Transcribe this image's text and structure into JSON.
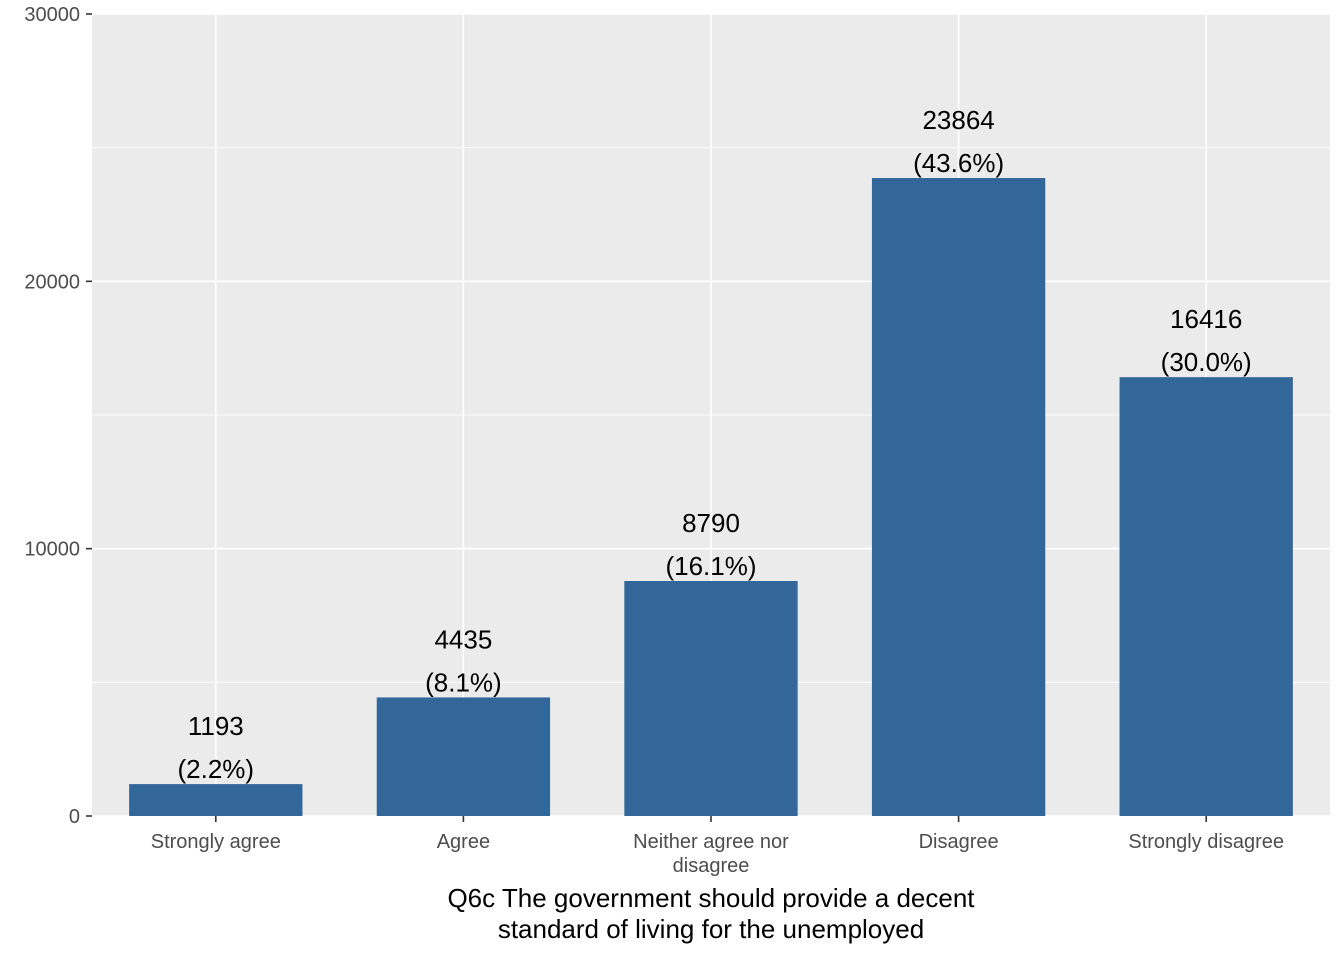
{
  "chart_data": {
    "type": "bar",
    "categories": [
      [
        "Strongly agree"
      ],
      [
        "Agree"
      ],
      [
        "Neither agree nor",
        "disagree"
      ],
      [
        "Disagree"
      ],
      [
        "Strongly disagree"
      ]
    ],
    "values": [
      1193,
      4435,
      8790,
      23864,
      16416
    ],
    "value_labels": [
      "1193",
      "4435",
      "8790",
      "23864",
      "16416"
    ],
    "percent_labels": [
      "(2.2%)",
      "(8.1%)",
      "(16.1%)",
      "(43.6%)",
      "(30.0%)"
    ],
    "xlabel": [
      "Q6c The government should provide a decent",
      "standard of living for the unemployed"
    ],
    "ylabel": "",
    "ylim": [
      0,
      30000
    ],
    "yticks": [
      0,
      10000,
      20000,
      30000
    ],
    "yticks_minor": [
      5000,
      15000,
      25000
    ],
    "grid": true,
    "colors": {
      "bar": "#336699",
      "panel": "#EBEBEB",
      "grid": "#FFFFFF"
    }
  }
}
